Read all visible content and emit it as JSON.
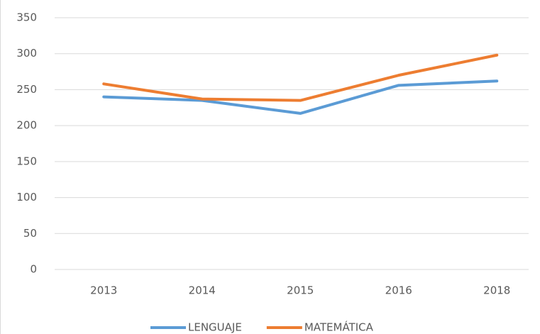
{
  "chart_data": {
    "type": "line",
    "categories": [
      "2013",
      "2014",
      "2015",
      "2016",
      "2018"
    ],
    "series": [
      {
        "name": "LENGUAJE",
        "color": "#5b9bd5",
        "values": [
          240,
          235,
          217,
          256,
          262
        ]
      },
      {
        "name": "MATEMÁTICA",
        "color": "#ed7d31",
        "values": [
          258,
          237,
          235,
          270,
          298
        ]
      }
    ],
    "ylim": [
      0,
      350
    ],
    "yticks": [
      0,
      50,
      100,
      150,
      200,
      250,
      300,
      350
    ],
    "grid": true,
    "legend": "bottom"
  }
}
